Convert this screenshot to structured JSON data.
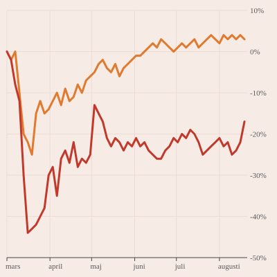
{
  "chart_data": {
    "type": "line",
    "title": "",
    "xlabel": "",
    "ylabel": "",
    "grid": true,
    "y_axis_side": "right",
    "ylim": [
      -50,
      10
    ],
    "y_ticks": [
      10,
      0,
      -10,
      -20,
      -30,
      -40,
      -50
    ],
    "y_tick_labels": [
      "10%",
      "0%",
      "-10%",
      "-20%",
      "-30%",
      "-40%",
      "-50%"
    ],
    "xlim": [
      0,
      173
    ],
    "x_ticks": [
      0,
      31,
      61,
      92,
      122,
      153
    ],
    "x_tick_labels": [
      "mars",
      "april",
      "maj",
      "juni",
      "juli",
      "augusti"
    ],
    "series": [
      {
        "color": "#e07a2e",
        "x": [
          0,
          3,
          6,
          9,
          12,
          15,
          18,
          21,
          24,
          27,
          30,
          33,
          36,
          39,
          42,
          45,
          48,
          51,
          54,
          57,
          60,
          63,
          66,
          69,
          72,
          75,
          78,
          81,
          84,
          87,
          90,
          93,
          96,
          99,
          102,
          105,
          108,
          111,
          114,
          117,
          120,
          123,
          126,
          129,
          132,
          135,
          138,
          141,
          144,
          147,
          150,
          153,
          156,
          159,
          162,
          165,
          168,
          171
        ],
        "values": [
          0,
          -2,
          0,
          -10,
          -20,
          -22,
          -25,
          -15,
          -12,
          -15,
          -14,
          -12,
          -10,
          -13,
          -9,
          -12,
          -11,
          -8,
          -10,
          -7,
          -6,
          -5,
          -3,
          -2,
          -4,
          -5,
          -3,
          -6,
          -4,
          -3,
          -2,
          -1,
          -1,
          0,
          1,
          2,
          1,
          3,
          2,
          1,
          0,
          1,
          2,
          1,
          2,
          3,
          1,
          2,
          3,
          4,
          3,
          2,
          4,
          3,
          4,
          3,
          4,
          3
        ]
      },
      {
        "color": "#c0392b",
        "x": [
          0,
          3,
          6,
          9,
          12,
          15,
          18,
          21,
          24,
          27,
          30,
          33,
          36,
          39,
          42,
          45,
          48,
          51,
          54,
          57,
          60,
          63,
          66,
          69,
          72,
          75,
          78,
          81,
          84,
          87,
          90,
          93,
          96,
          99,
          102,
          105,
          108,
          111,
          114,
          117,
          120,
          123,
          126,
          129,
          132,
          135,
          138,
          141,
          144,
          147,
          150,
          153,
          156,
          159,
          162,
          165,
          168,
          171
        ],
        "values": [
          0,
          -2,
          -8,
          -12,
          -30,
          -44,
          -43,
          -42,
          -40,
          -38,
          -30,
          -28,
          -35,
          -26,
          -24,
          -27,
          -22,
          -28,
          -26,
          -27,
          -25,
          -13,
          -15,
          -17,
          -21,
          -23,
          -21,
          -22,
          -24,
          -22,
          -23,
          -21,
          -23,
          -22,
          -24,
          -25,
          -26,
          -26,
          -24,
          -23,
          -21,
          -22,
          -20,
          -21,
          -19,
          -20,
          -22,
          -25,
          -24,
          -23,
          -22,
          -21,
          -23,
          -22,
          -25,
          -24,
          -22,
          -17
        ]
      }
    ]
  }
}
